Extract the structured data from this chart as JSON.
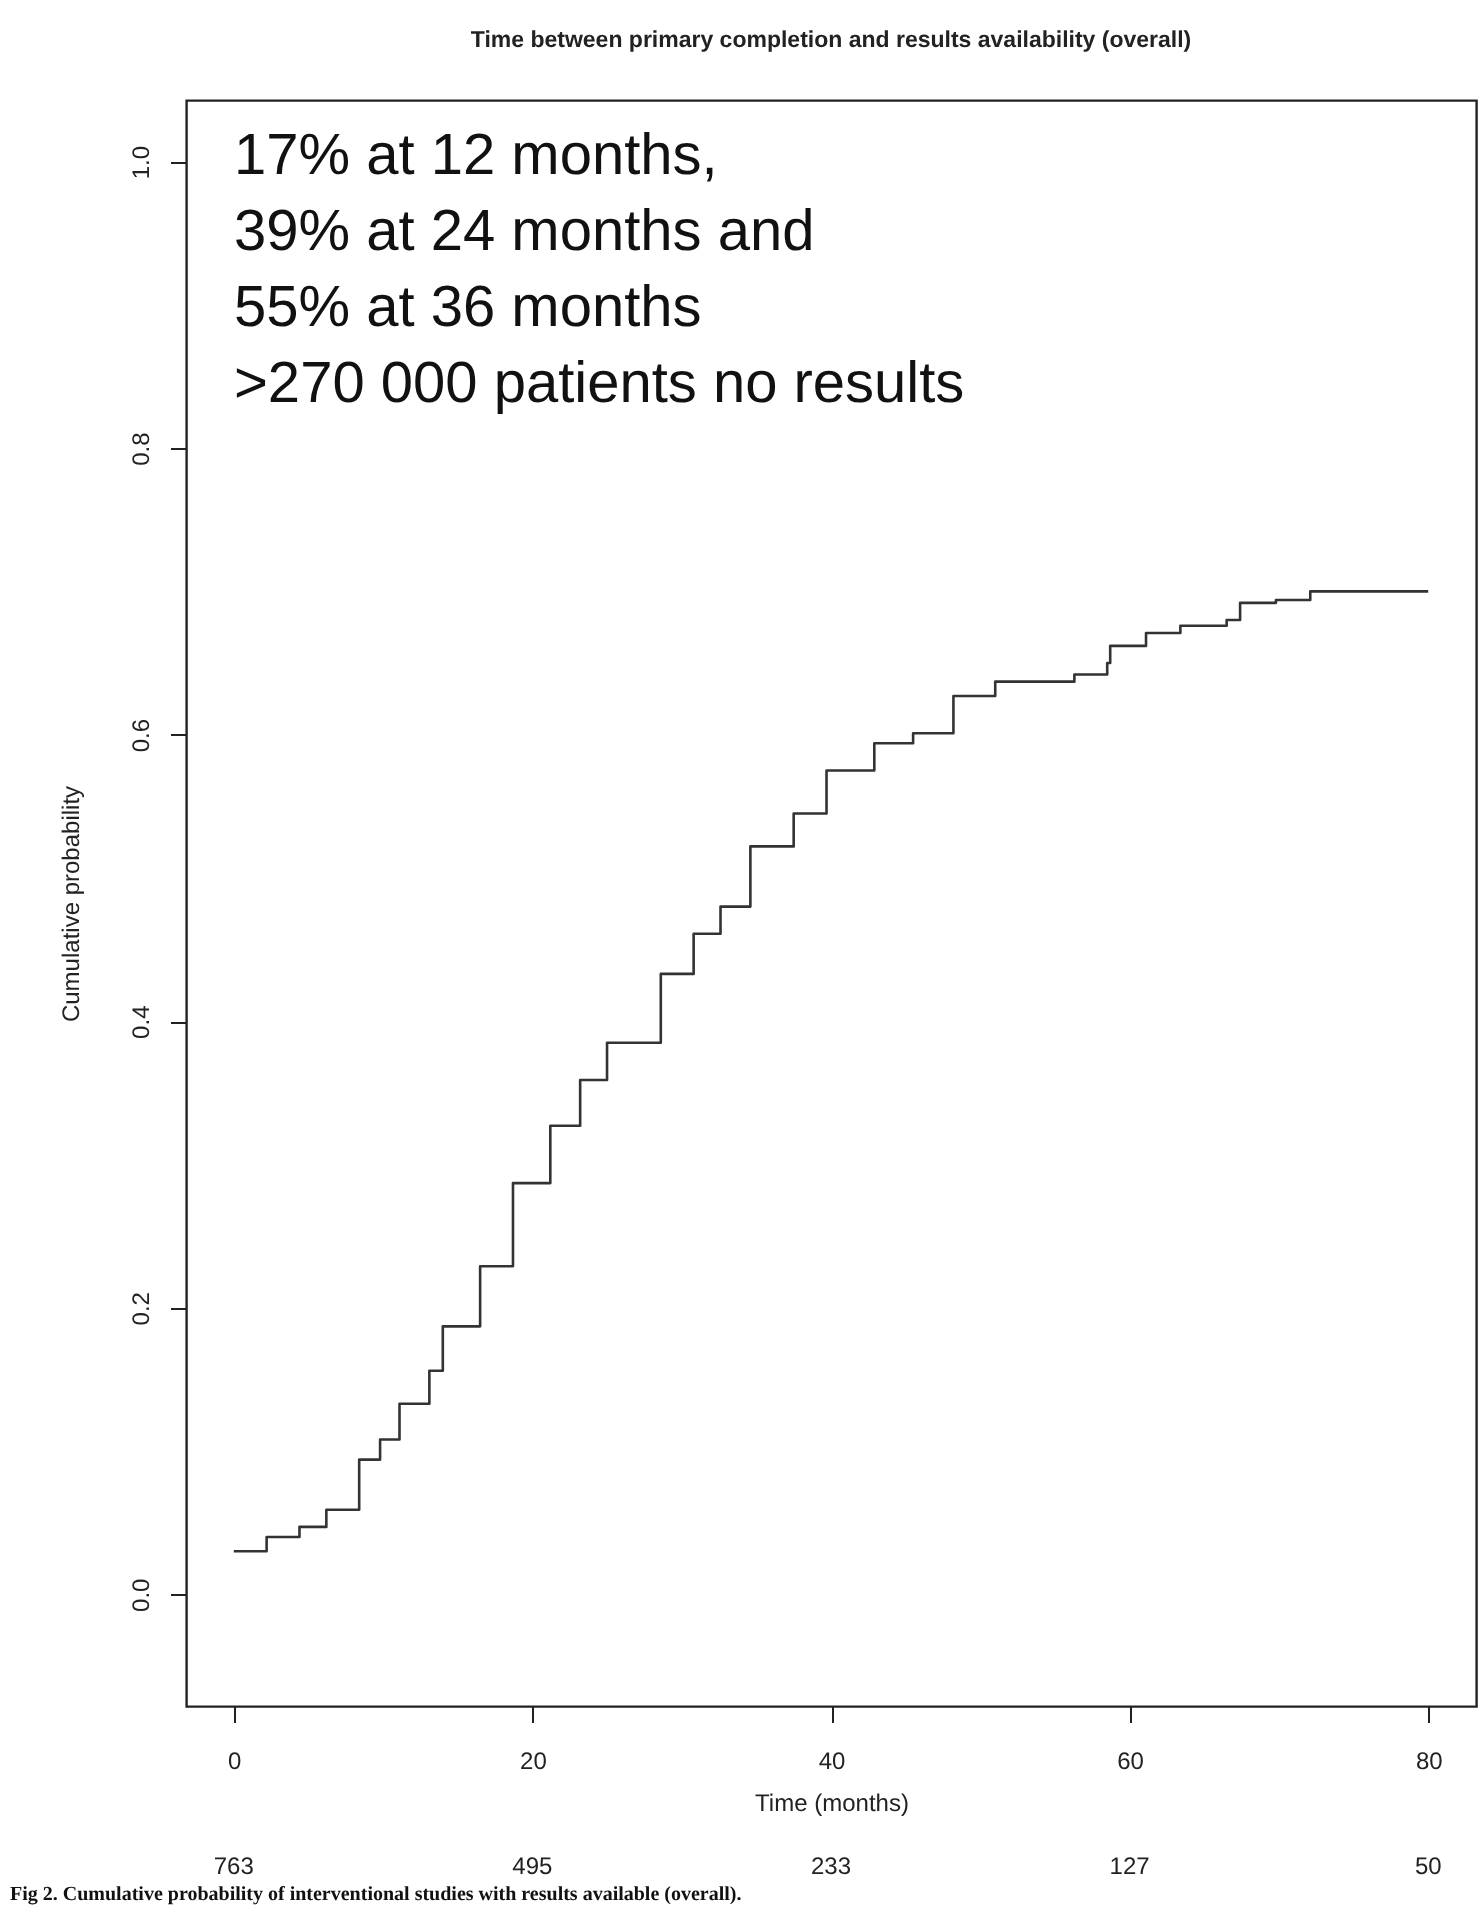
{
  "chart_data": {
    "type": "step",
    "title": "Time between primary completion and results availability (overall)",
    "xlabel": "Time (months)",
    "ylabel": "Cumulative probability",
    "x": [
      0,
      2.2,
      4.4,
      6.2,
      8.4,
      9.8,
      11.1,
      13.1,
      14,
      16.5,
      18.7,
      21.2,
      23.2,
      25,
      28.6,
      30.8,
      32.6,
      34.6,
      37.5,
      39.7,
      42.9,
      45.5,
      48.2,
      51,
      56.3,
      58.5,
      58.7,
      61.1,
      63.4,
      66.5,
      67.4,
      69.8,
      72.1,
      80
    ],
    "series": [
      {
        "color": "#333333",
        "values": [
          0.03,
          0.04,
          0.047,
          0.059,
          0.094,
          0.108,
          0.133,
          0.156,
          0.187,
          0.229,
          0.287,
          0.327,
          0.359,
          0.385,
          0.433,
          0.461,
          0.48,
          0.522,
          0.545,
          0.575,
          0.594,
          0.601,
          0.627,
          0.637,
          0.642,
          0.65,
          0.662,
          0.671,
          0.676,
          0.68,
          0.692,
          0.694,
          0.7,
          0.7
        ]
      }
    ],
    "xlim": [
      -3.2,
      83.2
    ],
    "ylim": [
      -0.078,
      1.043
    ],
    "xticks": [
      0,
      20,
      40,
      60,
      80
    ],
    "yticks": [
      {
        "value": 0,
        "label": "0.0"
      },
      {
        "value": 0.2,
        "label": "0.2"
      },
      {
        "value": 0.4,
        "label": "0.4"
      },
      {
        "value": 0.6,
        "label": "0.6"
      },
      {
        "value": 0.8,
        "label": "0.8"
      },
      {
        "value": 1,
        "label": "1.0"
      }
    ],
    "annotations": [
      "17% at 12 months,\n39% at 24 months and\n55% at 36 months\n>270 000 patients no results",
      "Fig 2. Cumulative probability of interventional studies with results available (overall).",
      "763",
      "495",
      "233",
      "127",
      "50"
    ]
  }
}
